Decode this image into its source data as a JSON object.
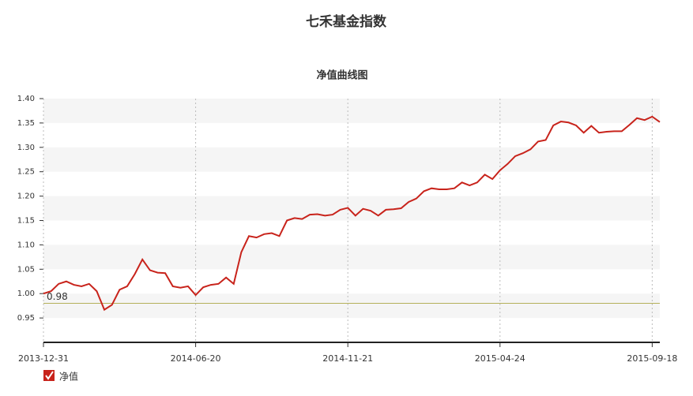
{
  "chart_data": {
    "type": "line",
    "title": "七禾基金指数",
    "subtitle": "净值曲线图",
    "categories": [
      "2013-12-31",
      null,
      null,
      null,
      null,
      null,
      null,
      null,
      null,
      null,
      null,
      null,
      null,
      null,
      null,
      null,
      null,
      null,
      null,
      null,
      "2014-06-20",
      null,
      null,
      null,
      null,
      null,
      null,
      null,
      null,
      null,
      null,
      null,
      null,
      null,
      null,
      null,
      null,
      null,
      null,
      null,
      "2014-11-21",
      null,
      null,
      null,
      null,
      null,
      null,
      null,
      null,
      null,
      null,
      null,
      null,
      null,
      null,
      null,
      null,
      null,
      null,
      null,
      "2015-04-24",
      null,
      null,
      null,
      null,
      null,
      null,
      null,
      null,
      null,
      null,
      null,
      null,
      null,
      null,
      null,
      null,
      null,
      null,
      null,
      "2015-09-18",
      null
    ],
    "series": [
      {
        "name": "净值",
        "color": "#c8231b",
        "values": [
          1.0,
          1.005,
          1.02,
          1.025,
          1.018,
          1.015,
          1.02,
          1.005,
          0.967,
          0.977,
          1.008,
          1.015,
          1.04,
          1.07,
          1.048,
          1.043,
          1.042,
          1.015,
          1.012,
          1.015,
          0.997,
          1.013,
          1.018,
          1.02,
          1.033,
          1.02,
          1.085,
          1.118,
          1.115,
          1.122,
          1.124,
          1.118,
          1.15,
          1.155,
          1.153,
          1.162,
          1.163,
          1.16,
          1.162,
          1.172,
          1.176,
          1.16,
          1.174,
          1.17,
          1.16,
          1.172,
          1.173,
          1.175,
          1.188,
          1.195,
          1.21,
          1.216,
          1.214,
          1.214,
          1.216,
          1.228,
          1.222,
          1.228,
          1.244,
          1.235,
          1.253,
          1.266,
          1.282,
          1.288,
          1.296,
          1.312,
          1.315,
          1.345,
          1.353,
          1.351,
          1.345,
          1.33,
          1.344,
          1.33,
          1.332,
          1.333,
          1.333,
          1.346,
          1.36,
          1.356,
          1.363,
          1.352
        ]
      }
    ],
    "reference_line": {
      "value": 0.98,
      "color": "#b5b05a"
    },
    "ylim": [
      0.9,
      1.4
    ],
    "yticks": [
      0.95,
      {
        "value": 1.0,
        "label": "1.00"
      },
      1.05,
      {
        "value": 1.1,
        "label": "1.10"
      },
      1.15,
      {
        "value": 1.2,
        "label": "1.20"
      },
      1.25,
      {
        "value": 1.3,
        "label": "1.30"
      },
      1.35,
      {
        "value": 1.4,
        "label": "1.40"
      }
    ],
    "grid": true,
    "legend": "bottom-left"
  }
}
